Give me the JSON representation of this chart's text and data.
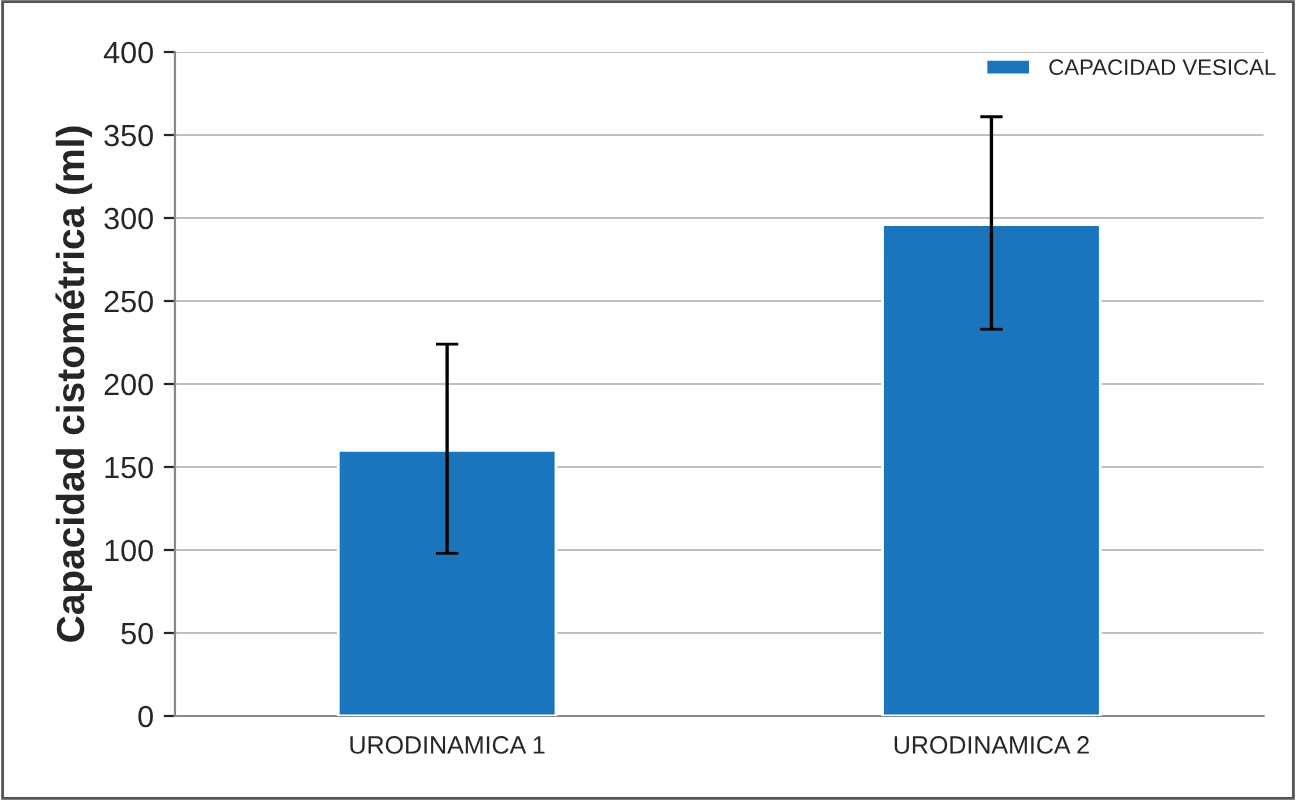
{
  "chart_data": {
    "type": "bar",
    "ylabel": "Capacidad cistométrica (ml)",
    "categories": [
      "URODINAMICA 1",
      "URODINAMICA 2"
    ],
    "series": [
      {
        "name": "CAPACIDAD VESICAL",
        "color": "#1b75bc",
        "values": [
          160,
          296
        ],
        "errors": [
          [
            98,
            224
          ],
          [
            233,
            361
          ]
        ]
      }
    ],
    "ylim": [
      0,
      400
    ],
    "yticks": [
      0,
      50,
      100,
      150,
      200,
      250,
      300,
      350,
      400
    ],
    "grid": "y",
    "legend": "top right"
  }
}
